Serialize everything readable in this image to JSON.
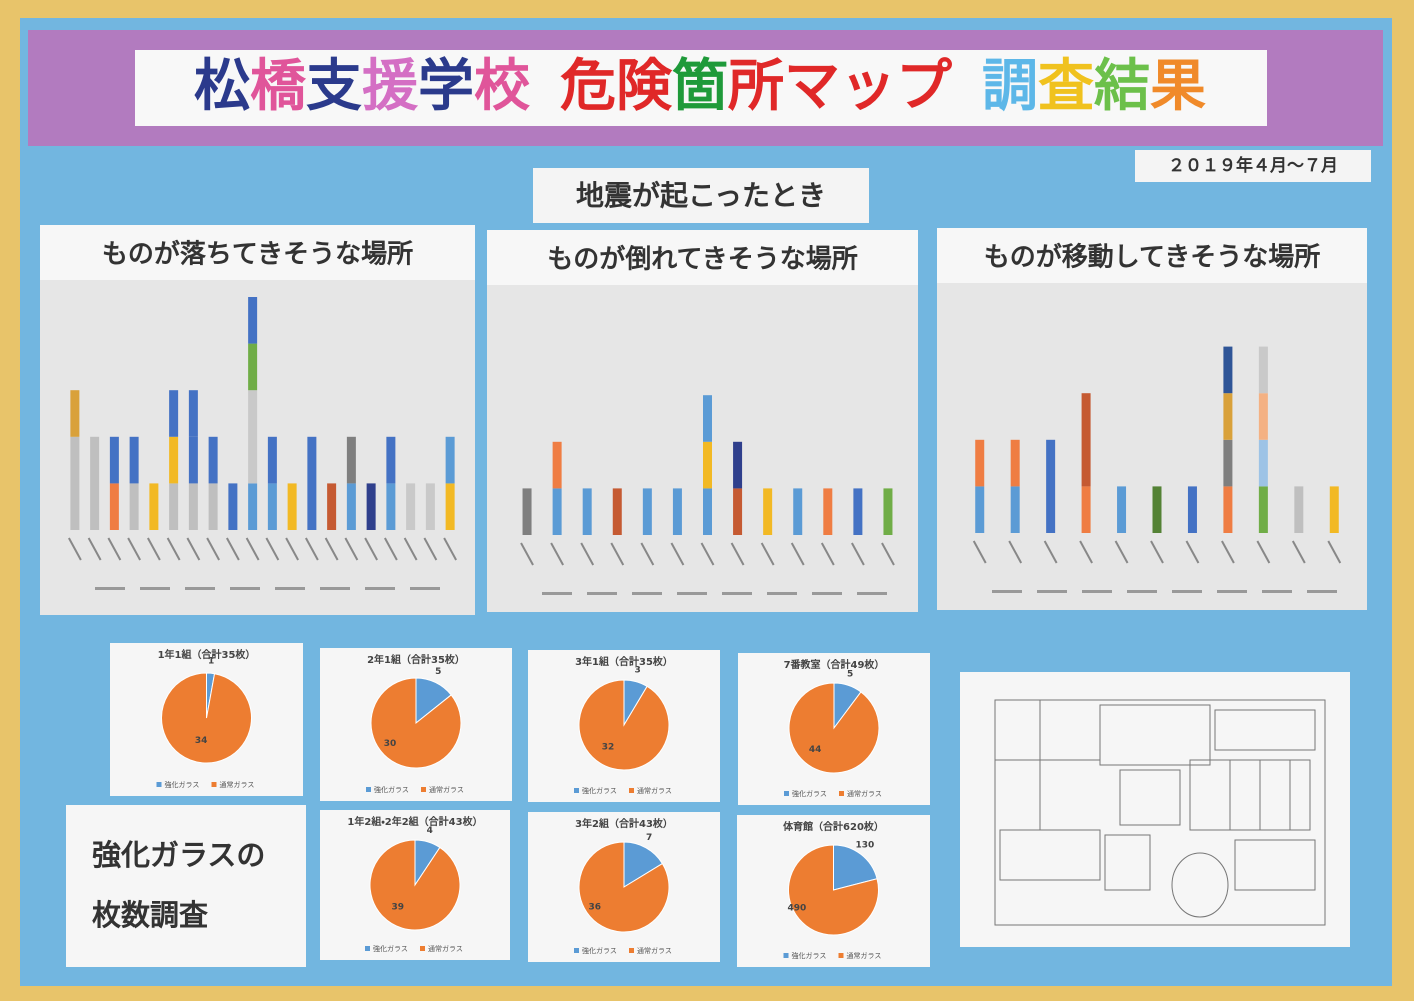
{
  "title_parts": [
    {
      "text": "松橋支援学校",
      "colors": [
        "#2b3a8c",
        "#e0559a",
        "#2b3a8c",
        "#d46fc4",
        "#2b3a8c",
        "#e0559a"
      ]
    },
    {
      "text": "危険箇所マップ",
      "colors": [
        "#e02828",
        "#e02828",
        "#1f9a3a",
        "#e02828",
        "#e02828",
        "#e02828",
        "#e02828"
      ]
    },
    {
      "text": "調査結果",
      "colors": [
        "#5db7e8",
        "#f0c21e",
        "#6cc04a",
        "#f08a2a"
      ]
    }
  ],
  "date": "２０１９年４月～７月",
  "section": "地震が起こったとき",
  "bar_charts": [
    {
      "type": "bar",
      "title": "ものが落ちてきそうな場所",
      "ylim": [
        0,
        5
      ],
      "bars": [
        {
          "values": [
            2,
            1
          ],
          "colors": [
            "#bfbfbf",
            "#d9a13a"
          ]
        },
        {
          "values": [
            2
          ],
          "colors": [
            "#bfbfbf"
          ]
        },
        {
          "values": [
            1,
            1
          ],
          "colors": [
            "#ef7d43",
            "#4472c4"
          ]
        },
        {
          "values": [
            1,
            1
          ],
          "colors": [
            "#bfbfbf",
            "#4472c4"
          ]
        },
        {
          "values": [
            1
          ],
          "colors": [
            "#f2b924"
          ]
        },
        {
          "values": [
            1,
            1,
            1
          ],
          "colors": [
            "#bfbfbf",
            "#f2b924",
            "#4472c4"
          ]
        },
        {
          "values": [
            1,
            1,
            1
          ],
          "colors": [
            "#bfbfbf",
            "#4472c4",
            "#4472c4"
          ]
        },
        {
          "values": [
            1,
            1
          ],
          "colors": [
            "#bfbfbf",
            "#4472c4"
          ]
        },
        {
          "values": [
            1
          ],
          "colors": [
            "#4472c4"
          ]
        },
        {
          "values": [
            1,
            2,
            1,
            1
          ],
          "colors": [
            "#5b9bd5",
            "#c9c9c9",
            "#70ad47",
            "#4472c4"
          ]
        },
        {
          "values": [
            1,
            1
          ],
          "colors": [
            "#5b9bd5",
            "#4472c4"
          ]
        },
        {
          "values": [
            1
          ],
          "colors": [
            "#f2b924"
          ]
        },
        {
          "values": [
            2
          ],
          "colors": [
            "#4472c4"
          ]
        },
        {
          "values": [
            1
          ],
          "colors": [
            "#c55a32"
          ]
        },
        {
          "values": [
            1,
            1
          ],
          "colors": [
            "#5b9bd5",
            "#7f7f7f"
          ]
        },
        {
          "values": [
            1
          ],
          "colors": [
            "#2f3f8c"
          ]
        },
        {
          "values": [
            1,
            1
          ],
          "colors": [
            "#5b9bd5",
            "#4472c4"
          ]
        },
        {
          "values": [
            1
          ],
          "colors": [
            "#c9c9c9"
          ]
        },
        {
          "values": [
            1
          ],
          "colors": [
            "#c9c9c9"
          ]
        },
        {
          "values": [
            1,
            1
          ],
          "colors": [
            "#f2b924",
            "#5b9bd5"
          ]
        }
      ]
    },
    {
      "type": "bar",
      "title": "ものが倒れてきそうな場所",
      "ylim": [
        0,
        5
      ],
      "bars": [
        {
          "values": [
            1
          ],
          "colors": [
            "#7f7f7f"
          ]
        },
        {
          "values": [
            1,
            1
          ],
          "colors": [
            "#5b9bd5",
            "#ef7d43"
          ]
        },
        {
          "values": [
            1
          ],
          "colors": [
            "#5b9bd5"
          ]
        },
        {
          "values": [
            1
          ],
          "colors": [
            "#c55a32"
          ]
        },
        {
          "values": [
            1
          ],
          "colors": [
            "#5b9bd5"
          ]
        },
        {
          "values": [
            1
          ],
          "colors": [
            "#5b9bd5"
          ]
        },
        {
          "values": [
            1,
            1,
            1
          ],
          "colors": [
            "#5b9bd5",
            "#f2b924",
            "#5b9bd5"
          ]
        },
        {
          "values": [
            1,
            1
          ],
          "colors": [
            "#c55a32",
            "#2f3f8c"
          ]
        },
        {
          "values": [
            1
          ],
          "colors": [
            "#f2b924"
          ]
        },
        {
          "values": [
            1
          ],
          "colors": [
            "#5b9bd5"
          ]
        },
        {
          "values": [
            1
          ],
          "colors": [
            "#ef7d43"
          ]
        },
        {
          "values": [
            1
          ],
          "colors": [
            "#4472c4"
          ]
        },
        {
          "values": [
            1
          ],
          "colors": [
            "#70ad47"
          ]
        }
      ]
    },
    {
      "type": "bar",
      "title": "ものが移動してきそうな場所",
      "ylim": [
        0,
        5
      ],
      "bars": [
        {
          "values": [
            1,
            1
          ],
          "colors": [
            "#5b9bd5",
            "#ef7d43"
          ]
        },
        {
          "values": [
            1,
            1
          ],
          "colors": [
            "#5b9bd5",
            "#ef7d43"
          ]
        },
        {
          "values": [
            2
          ],
          "colors": [
            "#4472c4"
          ]
        },
        {
          "values": [
            1,
            2
          ],
          "colors": [
            "#ef7d43",
            "#c55a32"
          ]
        },
        {
          "values": [
            1
          ],
          "colors": [
            "#5b9bd5"
          ]
        },
        {
          "values": [
            1
          ],
          "colors": [
            "#548235"
          ]
        },
        {
          "values": [
            1
          ],
          "colors": [
            "#4472c4"
          ]
        },
        {
          "values": [
            1,
            1,
            1,
            1
          ],
          "colors": [
            "#ef7d43",
            "#7f7f7f",
            "#d9a13a",
            "#2f5597"
          ]
        },
        {
          "values": [
            1,
            1,
            1,
            1
          ],
          "colors": [
            "#70ad47",
            "#9dc3e6",
            "#f4b183",
            "#c9c9c9"
          ]
        },
        {
          "values": [
            1
          ],
          "colors": [
            "#bfbfbf"
          ]
        },
        {
          "values": [
            1
          ],
          "colors": [
            "#f2b924"
          ]
        }
      ]
    }
  ],
  "pies": [
    {
      "type": "pie",
      "title": "1年1組（合計35枚）",
      "values": [
        1,
        34
      ],
      "colors": [
        "#5b9bd5",
        "#ed7d31"
      ],
      "legend": [
        "強化ガラス",
        "通常ガラス"
      ]
    },
    {
      "type": "pie",
      "title": "2年1組（合計35枚）",
      "values": [
        5,
        30
      ],
      "colors": [
        "#5b9bd5",
        "#ed7d31"
      ],
      "legend": [
        "強化ガラス",
        "通常ガラス"
      ]
    },
    {
      "type": "pie",
      "title": "3年1組（合計35枚）",
      "values": [
        3,
        32
      ],
      "colors": [
        "#5b9bd5",
        "#ed7d31"
      ],
      "legend": [
        "強化ガラス",
        "通常ガラス"
      ]
    },
    {
      "type": "pie",
      "title": "7番教室（合計49枚）",
      "values": [
        5,
        44
      ],
      "colors": [
        "#5b9bd5",
        "#ed7d31"
      ],
      "legend": [
        "強化ガラス",
        "通常ガラス"
      ]
    },
    {
      "type": "pie",
      "title": "1年2組・2年2組（合計43枚）",
      "values": [
        4,
        39
      ],
      "colors": [
        "#5b9bd5",
        "#ed7d31"
      ],
      "legend": [
        "強化ガラス",
        "通常ガラス"
      ]
    },
    {
      "type": "pie",
      "title": "3年2組（合計43枚）",
      "values": [
        7,
        36
      ],
      "colors": [
        "#5b9bd5",
        "#ed7d31"
      ],
      "legend": [
        "強化ガラス",
        "通常ガラス"
      ]
    },
    {
      "type": "pie",
      "title": "体育館（合計620枚）",
      "values": [
        130,
        490
      ],
      "colors": [
        "#5b9bd5",
        "#ed7d31"
      ],
      "legend": [
        "強化ガラス",
        "通常ガラス"
      ]
    }
  ],
  "glass_note": [
    "強化ガラスの",
    "枚数調査"
  ]
}
